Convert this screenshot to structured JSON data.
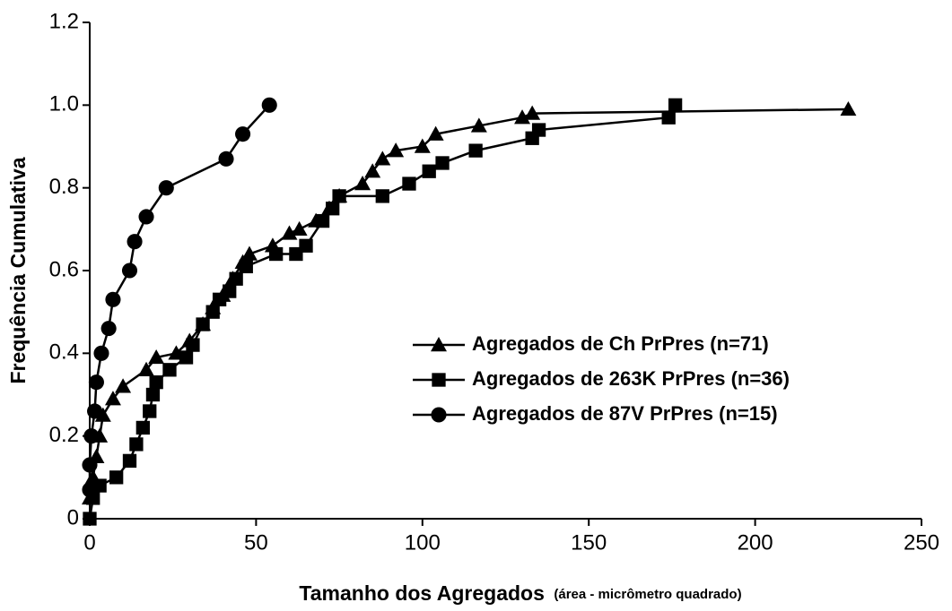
{
  "chart_data": {
    "type": "line",
    "ylabel": "Frequência Cumulativa",
    "xlabel": "Tamanho dos Agregados",
    "xlabel_note": "(área - micrômetro quadrado)",
    "xlim": [
      0,
      250
    ],
    "xticks": [
      0,
      50,
      100,
      150,
      200,
      250
    ],
    "ylim": [
      0,
      1.2
    ],
    "yticks": [
      0,
      0.2,
      0.4,
      0.6,
      0.8,
      {
        "value": 1,
        "label": "1.0"
      },
      1.2
    ],
    "legend": "right",
    "series": [
      {
        "name": "Agregados de Ch PrPres (n=71)",
        "color": "#000000",
        "marker": "triangle",
        "x": [
          0,
          1,
          2,
          3,
          4,
          7,
          10,
          17,
          20,
          26,
          30,
          34,
          37,
          40,
          43,
          46,
          48,
          55,
          60,
          63,
          68,
          72,
          75,
          82,
          85,
          88,
          92,
          100,
          104,
          117,
          130,
          133,
          228
        ],
        "values": [
          0.05,
          0.1,
          0.15,
          0.2,
          0.25,
          0.29,
          0.32,
          0.36,
          0.39,
          0.4,
          0.43,
          0.47,
          0.51,
          0.54,
          0.58,
          0.62,
          0.64,
          0.66,
          0.69,
          0.7,
          0.72,
          0.75,
          0.78,
          0.81,
          0.84,
          0.87,
          0.89,
          0.9,
          0.93,
          0.95,
          0.97,
          0.98,
          0.99
        ]
      },
      {
        "name": "Agregados de 263K PrPres (n=36)",
        "color": "#000000",
        "marker": "square",
        "x": [
          0,
          1,
          3,
          8,
          12,
          14,
          16,
          18,
          19,
          20,
          24,
          29,
          31,
          34,
          37,
          39,
          42,
          44,
          47,
          56,
          62,
          65,
          70,
          73,
          75,
          88,
          96,
          102,
          106,
          116,
          133,
          135,
          174,
          176
        ],
        "values": [
          0,
          0.05,
          0.08,
          0.1,
          0.14,
          0.18,
          0.22,
          0.26,
          0.3,
          0.33,
          0.36,
          0.39,
          0.42,
          0.47,
          0.5,
          0.53,
          0.55,
          0.58,
          0.61,
          0.64,
          0.64,
          0.66,
          0.72,
          0.75,
          0.78,
          0.78,
          0.81,
          0.84,
          0.86,
          0.89,
          0.92,
          0.94,
          0.97,
          1.0
        ]
      },
      {
        "name": "Agregados de 87V PrPres (n=15)",
        "color": "#000000",
        "marker": "circle",
        "x": [
          0,
          0,
          0.5,
          1.5,
          2,
          3.5,
          5.7,
          7,
          12,
          13.5,
          17,
          23,
          41,
          46,
          54
        ],
        "values": [
          0.07,
          0.13,
          0.2,
          0.26,
          0.33,
          0.4,
          0.46,
          0.53,
          0.6,
          0.67,
          0.73,
          0.8,
          0.87,
          0.93,
          1.0
        ]
      }
    ]
  }
}
